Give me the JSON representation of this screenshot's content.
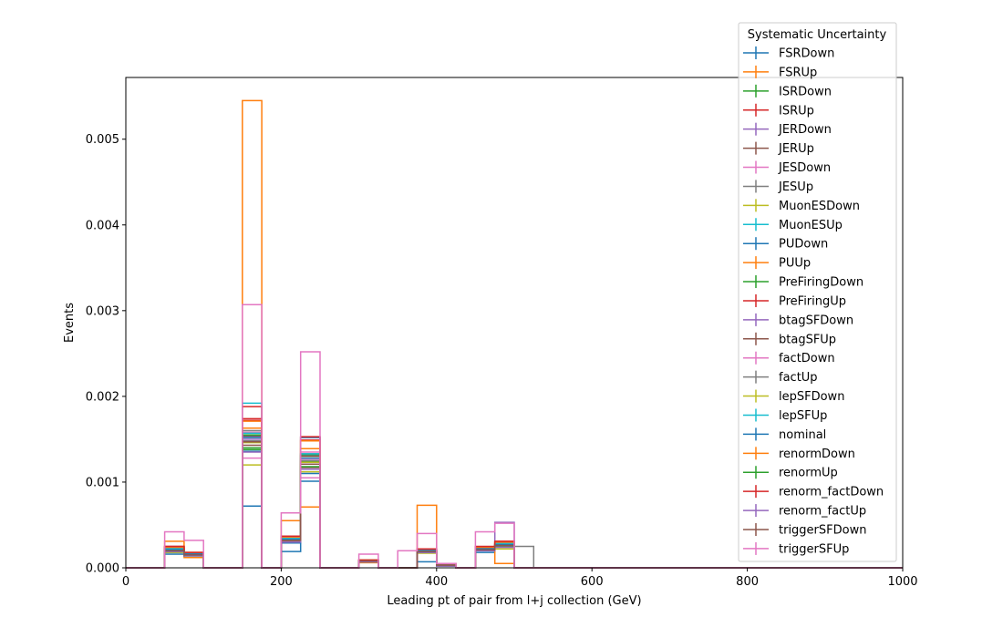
{
  "chart_data": {
    "type": "step",
    "xlabel": "Leading pt of pair from l+j collection (GeV)",
    "ylabel": "Events",
    "xlim": [
      0,
      1000
    ],
    "ylim": [
      0,
      0.00572
    ],
    "xticks": [
      0,
      200,
      400,
      600,
      800,
      1000
    ],
    "xtick_labels": [
      "0",
      "200",
      "400",
      "600",
      "800",
      "1000"
    ],
    "yticks": [
      0,
      0.001,
      0.002,
      0.003,
      0.004,
      0.005
    ],
    "ytick_labels": [
      "0.000",
      "0.001",
      "0.002",
      "0.003",
      "0.004",
      "0.005"
    ],
    "bin_edges": [
      0,
      25,
      50,
      75,
      100,
      125,
      150,
      175,
      200,
      225,
      250,
      275,
      300,
      325,
      350,
      375,
      400,
      425,
      450,
      475,
      500,
      525,
      550,
      575,
      600,
      625,
      650,
      675,
      700,
      725,
      750,
      775,
      800,
      825,
      850,
      875,
      900,
      925,
      950,
      975,
      1000
    ],
    "legend_title": "Systematic Uncertainty",
    "legend_position": "upper right",
    "series": [
      {
        "name": "FSRDown",
        "color": "#1f77b4",
        "values": [
          0,
          0,
          0.00018,
          0.00016,
          0,
          0,
          0.00072,
          0,
          0.00019,
          0.0011,
          0,
          0,
          8e-05,
          0,
          0,
          7e-05,
          3e-05,
          0,
          0.00018,
          0.00025,
          0,
          0,
          0,
          0,
          0,
          0,
          0,
          0,
          0,
          0,
          0,
          0,
          0,
          0,
          0,
          0,
          0,
          0,
          0,
          0
        ]
      },
      {
        "name": "FSRUp",
        "color": "#ff7f0e",
        "values": [
          0,
          0,
          0.00031,
          0.00012,
          0,
          0,
          0.00545,
          0,
          0.00055,
          0.00071,
          0,
          0,
          6e-05,
          0,
          0,
          0.00073,
          5e-05,
          0,
          0.0002,
          5e-05,
          0,
          0,
          0,
          0,
          0,
          0,
          0,
          0,
          0,
          0,
          0,
          0,
          0,
          0,
          0,
          0,
          0,
          0,
          0,
          0
        ]
      },
      {
        "name": "ISRDown",
        "color": "#2ca02c",
        "values": [
          0,
          0,
          0.0002,
          0.00015,
          0,
          0,
          0.00138,
          0,
          0.00032,
          0.00124,
          0,
          0,
          8e-05,
          0,
          0,
          0.0002,
          3e-05,
          0,
          0.00022,
          0.00027,
          0,
          0,
          0,
          0,
          0,
          0,
          0,
          0,
          0,
          0,
          0,
          0,
          0,
          0,
          0,
          0,
          0,
          0,
          0,
          0
        ]
      },
      {
        "name": "ISRUp",
        "color": "#d62728",
        "values": [
          0,
          0,
          0.00025,
          0.00018,
          0,
          0,
          0.00172,
          0,
          0.00037,
          0.00152,
          0,
          0,
          9e-05,
          0,
          0,
          0.00022,
          3e-05,
          0,
          0.00024,
          0.00031,
          0,
          0,
          0,
          0,
          0,
          0,
          0,
          0,
          0,
          0,
          0,
          0,
          0,
          0,
          0,
          0,
          0,
          0,
          0,
          0
        ]
      },
      {
        "name": "JERDown",
        "color": "#9467bd",
        "values": [
          0,
          0,
          0.00021,
          0.00016,
          0,
          0,
          0.00154,
          0,
          0.00033,
          0.00131,
          0,
          0,
          8e-05,
          0,
          0,
          0.0002,
          3e-05,
          0,
          0.00022,
          0.00053,
          0,
          0,
          0,
          0,
          0,
          0,
          0,
          0,
          0,
          0,
          0,
          0,
          0,
          0,
          0,
          0,
          0,
          0,
          0,
          0
        ]
      },
      {
        "name": "JERUp",
        "color": "#8c564b",
        "values": [
          0,
          0,
          0.0002,
          0.00015,
          0,
          0,
          0.00143,
          0,
          0.00031,
          0.00117,
          0,
          0,
          8e-05,
          0,
          0,
          0.00019,
          3e-05,
          0,
          0.00021,
          0.00026,
          0,
          0,
          0,
          0,
          0,
          0,
          0,
          0,
          0,
          0,
          0,
          0,
          0,
          0,
          0,
          0,
          0,
          0,
          0,
          0
        ]
      },
      {
        "name": "JESDown",
        "color": "#e377c2",
        "values": [
          0,
          0,
          0.00022,
          0.00017,
          0,
          0,
          0.00158,
          0,
          0.00034,
          0.00135,
          0,
          0,
          9e-05,
          0,
          0,
          0.00021,
          3e-05,
          0,
          0.00023,
          0.00028,
          0,
          0,
          0,
          0,
          0,
          0,
          0,
          0,
          0,
          0,
          0,
          0,
          0,
          0,
          0,
          0,
          0,
          0,
          0,
          0
        ]
      },
      {
        "name": "JESUp",
        "color": "#7f7f7f",
        "values": [
          0,
          0,
          0.0002,
          0.00015,
          0,
          0,
          0.00148,
          0,
          0.00032,
          0.00125,
          0,
          0,
          8e-05,
          0,
          0,
          0.00019,
          3e-05,
          0,
          0.00022,
          0.00025,
          0.00025,
          0,
          0,
          0,
          0,
          0,
          0,
          0,
          0,
          0,
          0,
          0,
          0,
          0,
          0,
          0,
          0,
          0,
          0,
          0
        ]
      },
      {
        "name": "MuonESDown",
        "color": "#bcbd22",
        "values": [
          0,
          0,
          0.00018,
          0.00014,
          0,
          0,
          0.0012,
          0,
          0.0003,
          0.00112,
          0,
          0,
          7e-05,
          0,
          0,
          0.00017,
          2e-05,
          0,
          0.0002,
          0.00022,
          0,
          0,
          0,
          0,
          0,
          0,
          0,
          0,
          0,
          0,
          0,
          0,
          0,
          0,
          0,
          0,
          0,
          0,
          0,
          0
        ]
      },
      {
        "name": "MuonESUp",
        "color": "#17becf",
        "values": [
          0,
          0,
          0.00022,
          0.00016,
          0,
          0,
          0.00192,
          0,
          0.00034,
          0.00128,
          0,
          0,
          8e-05,
          0,
          0,
          0.0002,
          3e-05,
          0,
          0.00022,
          0.00027,
          0,
          0,
          0,
          0,
          0,
          0,
          0,
          0,
          0,
          0,
          0,
          0,
          0,
          0,
          0,
          0,
          0,
          0,
          0,
          0
        ]
      },
      {
        "name": "PUDown",
        "color": "#1f77b4",
        "values": [
          0,
          0,
          0.00016,
          0.00014,
          0,
          0,
          0.00136,
          0,
          0.00029,
          0.00101,
          0,
          0,
          7e-05,
          0,
          0,
          0.00018,
          2e-05,
          0,
          0.0002,
          0.00024,
          0,
          0,
          0,
          0,
          0,
          0,
          0,
          0,
          0,
          0,
          0,
          0,
          0,
          0,
          0,
          0,
          0,
          0,
          0,
          0
        ]
      },
      {
        "name": "PUUp",
        "color": "#ff7f0e",
        "values": [
          0,
          0,
          0.00024,
          0.00017,
          0,
          0,
          0.00163,
          0,
          0.00035,
          0.00139,
          0,
          0,
          9e-05,
          0,
          0,
          0.00021,
          3e-05,
          0,
          0.00023,
          0.00029,
          0,
          0,
          0,
          0,
          0,
          0,
          0,
          0,
          0,
          0,
          0,
          0,
          0,
          0,
          0,
          0,
          0,
          0,
          0,
          0
        ]
      },
      {
        "name": "PreFiringDown",
        "color": "#2ca02c",
        "values": [
          0,
          0,
          0.00021,
          0.00016,
          0,
          0,
          0.00155,
          0,
          0.00033,
          0.00132,
          0,
          0,
          8e-05,
          0,
          0,
          0.0002,
          3e-05,
          0,
          0.00022,
          0.00028,
          0,
          0,
          0,
          0,
          0,
          0,
          0,
          0,
          0,
          0,
          0,
          0,
          0,
          0,
          0,
          0,
          0,
          0,
          0,
          0
        ]
      },
      {
        "name": "PreFiringUp",
        "color": "#d62728",
        "values": [
          0,
          0,
          0.00023,
          0.00017,
          0,
          0,
          0.00188,
          0,
          0.00036,
          0.00149,
          0,
          0,
          9e-05,
          0,
          0,
          0.00021,
          3e-05,
          0,
          0.00024,
          0.0003,
          0,
          0,
          0,
          0,
          0,
          0,
          0,
          0,
          0,
          0,
          0,
          0,
          0,
          0,
          0,
          0,
          0,
          0,
          0,
          0
        ]
      },
      {
        "name": "btagSFDown",
        "color": "#9467bd",
        "values": [
          0,
          0,
          0.0002,
          0.00015,
          0,
          0,
          0.0015,
          0,
          0.00032,
          0.00127,
          0,
          0,
          8e-05,
          0,
          0,
          0.00019,
          3e-05,
          0,
          0.00022,
          0.00026,
          0,
          0,
          0,
          0,
          0,
          0,
          0,
          0,
          0,
          0,
          0,
          0,
          0,
          0,
          0,
          0,
          0,
          0,
          0,
          0
        ]
      },
      {
        "name": "btagSFUp",
        "color": "#8c564b",
        "values": [
          0,
          0,
          0.00021,
          0.00016,
          0,
          0,
          0.00153,
          0,
          0.00033,
          0.0013,
          0,
          0,
          8e-05,
          0,
          0,
          0.0002,
          3e-05,
          0,
          0.00022,
          0.00027,
          0,
          0,
          0,
          0,
          0,
          0,
          0,
          0,
          0,
          0,
          0,
          0,
          0,
          0,
          0,
          0,
          0,
          0,
          0,
          0
        ]
      },
      {
        "name": "factDown",
        "color": "#e377c2",
        "values": [
          0,
          0,
          0.00019,
          0.00015,
          0,
          0,
          0.00128,
          0,
          0.0003,
          0.00105,
          0,
          0,
          7e-05,
          0,
          0,
          0.00018,
          2e-05,
          0,
          0.0002,
          0.00024,
          0,
          0,
          0,
          0,
          0,
          0,
          0,
          0,
          0,
          0,
          0,
          0,
          0,
          0,
          0,
          0,
          0,
          0,
          0,
          0
        ]
      },
      {
        "name": "factUp",
        "color": "#7f7f7f",
        "values": [
          0,
          0,
          0.00023,
          0.00017,
          0,
          0,
          0.0016,
          0,
          0.00035,
          0.00133,
          0,
          0,
          9e-05,
          0,
          0,
          0.00021,
          3e-05,
          0,
          0.00023,
          0.00029,
          0,
          0,
          0,
          0,
          0,
          0,
          0,
          0,
          0,
          0,
          0,
          0,
          0,
          0,
          0,
          0,
          0,
          0,
          0,
          0
        ]
      },
      {
        "name": "lepSFDown",
        "color": "#bcbd22",
        "values": [
          0,
          0,
          0.0002,
          0.00015,
          0,
          0,
          0.00146,
          0,
          0.00032,
          0.00123,
          0,
          0,
          8e-05,
          0,
          0,
          0.00019,
          3e-05,
          0,
          0.00021,
          0.00026,
          0,
          0,
          0,
          0,
          0,
          0,
          0,
          0,
          0,
          0,
          0,
          0,
          0,
          0,
          0,
          0,
          0,
          0,
          0,
          0
        ]
      },
      {
        "name": "lepSFUp",
        "color": "#17becf",
        "values": [
          0,
          0,
          0.00022,
          0.00016,
          0,
          0,
          0.00157,
          0,
          0.00034,
          0.00133,
          0,
          0,
          8e-05,
          0,
          0,
          0.0002,
          3e-05,
          0,
          0.00022,
          0.00028,
          0,
          0,
          0,
          0,
          0,
          0,
          0,
          0,
          0,
          0,
          0,
          0,
          0,
          0,
          0,
          0,
          0,
          0,
          0,
          0
        ]
      },
      {
        "name": "nominal",
        "color": "#1f77b4",
        "values": [
          0,
          0,
          0.00021,
          0.00016,
          0,
          0,
          0.00152,
          0,
          0.00033,
          0.00152,
          0,
          0,
          8e-05,
          0,
          0,
          0.0002,
          3e-05,
          0,
          0.00022,
          0.00027,
          0,
          0,
          0,
          0,
          0,
          0,
          0,
          0,
          0,
          0,
          0,
          0,
          0,
          0,
          0,
          0,
          0,
          0,
          0,
          0
        ]
      },
      {
        "name": "renormDown",
        "color": "#ff7f0e",
        "values": [
          0,
          0,
          0.00024,
          0.00018,
          0,
          0,
          0.00171,
          0,
          0.00036,
          0.00148,
          0,
          0,
          9e-05,
          0,
          0,
          0.00022,
          3e-05,
          0,
          0.00024,
          0.0003,
          0,
          0,
          0,
          0,
          0,
          0,
          0,
          0,
          0,
          0,
          0,
          0,
          0,
          0,
          0,
          0,
          0,
          0,
          0,
          0
        ]
      },
      {
        "name": "renormUp",
        "color": "#2ca02c",
        "values": [
          0,
          0,
          0.00019,
          0.00014,
          0,
          0,
          0.0014,
          0,
          0.0003,
          0.00118,
          0,
          0,
          7e-05,
          0,
          0,
          0.00018,
          2e-05,
          0,
          0.0002,
          0.00025,
          0,
          0,
          0,
          0,
          0,
          0,
          0,
          0,
          0,
          0,
          0,
          0,
          0,
          0,
          0,
          0,
          0,
          0,
          0,
          0
        ]
      },
      {
        "name": "renorm_factDown",
        "color": "#d62728",
        "values": [
          0,
          0,
          0.00025,
          0.00018,
          0,
          0,
          0.00174,
          0,
          0.00037,
          0.00153,
          0,
          0,
          9e-05,
          0,
          0,
          0.00022,
          3e-05,
          0,
          0.00025,
          0.00031,
          0,
          0,
          0,
          0,
          0,
          0,
          0,
          0,
          0,
          0,
          0,
          0,
          0,
          0,
          0,
          0,
          0,
          0,
          0,
          0
        ]
      },
      {
        "name": "renorm_factUp",
        "color": "#9467bd",
        "values": [
          0,
          0,
          0.00019,
          0.00014,
          0,
          0,
          0.00135,
          0,
          0.0003,
          0.00115,
          0,
          0,
          7e-05,
          0,
          0,
          0.00018,
          2e-05,
          0,
          0.0002,
          0.00024,
          0,
          0,
          0,
          0,
          0,
          0,
          0,
          0,
          0,
          0,
          0,
          0,
          0,
          0,
          0,
          0,
          0,
          0,
          0,
          0
        ]
      },
      {
        "name": "triggerSFDown",
        "color": "#8c564b",
        "values": [
          0,
          0,
          0.0002,
          0.00015,
          0,
          0,
          0.00147,
          0,
          0.00032,
          0.00121,
          0,
          0,
          8e-05,
          0,
          0,
          0.00019,
          3e-05,
          0,
          0.00021,
          0.00026,
          0,
          0,
          0,
          0,
          0,
          0,
          0,
          0,
          0,
          0,
          0,
          0,
          0,
          0,
          0,
          0,
          0,
          0,
          0,
          0
        ]
      },
      {
        "name": "triggerSFUp",
        "color": "#e377c2",
        "values": [
          0,
          0,
          0.00042,
          0.00032,
          0,
          0,
          0.00307,
          0,
          0.00064,
          0.00252,
          0,
          0,
          0.00016,
          0,
          0.0002,
          0.0004,
          5e-05,
          0,
          0.00042,
          0.00052,
          0,
          0,
          0,
          0,
          0,
          0,
          0,
          0,
          0,
          0,
          0,
          0,
          0,
          0,
          0,
          0,
          0,
          0,
          0,
          0
        ]
      }
    ]
  }
}
